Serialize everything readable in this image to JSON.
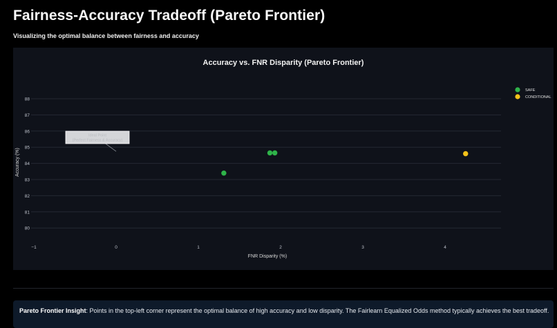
{
  "page": {
    "title": "Fairness-Accuracy Tradeoff (Pareto Frontier)",
    "subtitle": "Visualizing the optimal balance between fairness and accuracy"
  },
  "insight": {
    "label": "Pareto Frontier Insight",
    "text": ": Points in the top-left corner represent the optimal balance of high accuracy and low disparity. The Fairlearn Equalized Odds method typically achieves the best tradeoff."
  },
  "colors": {
    "safe": "#2fb34a",
    "conditional": "#f4c21a",
    "background": "#000000",
    "plot_bg": "#0f121a",
    "insight_bg": "#0e1a2a"
  },
  "chart_data": {
    "type": "scatter",
    "title": "Accuracy vs. FNR Disparity (Pareto Frontier)",
    "xlabel": "FNR Disparity (%)",
    "ylabel": "Accuracy (%)",
    "xlim": [
      -1,
      4.7
    ],
    "ylim": [
      79.5,
      88.5
    ],
    "xticks": [
      -1,
      0,
      1,
      2,
      3,
      4
    ],
    "yticks": [
      80,
      81,
      82,
      83,
      84,
      85,
      86,
      87,
      88
    ],
    "grid": true,
    "legend_position": "right",
    "series": [
      {
        "name": "SAFE",
        "color": "#2fb34a",
        "points": [
          {
            "x": 1.31,
            "y": 83.4
          },
          {
            "x": 1.87,
            "y": 84.65
          },
          {
            "x": 1.93,
            "y": 84.65
          }
        ]
      },
      {
        "name": "CONDITIONAL",
        "color": "#f4c21a",
        "points": [
          {
            "x": 4.25,
            "y": 84.6
          }
        ]
      }
    ],
    "annotations": [
      {
        "text_line1": "Ideal Point",
        "text_line2": "(Perfect Fairness & Accuracy)",
        "x": 0,
        "y": 84.7
      }
    ]
  }
}
